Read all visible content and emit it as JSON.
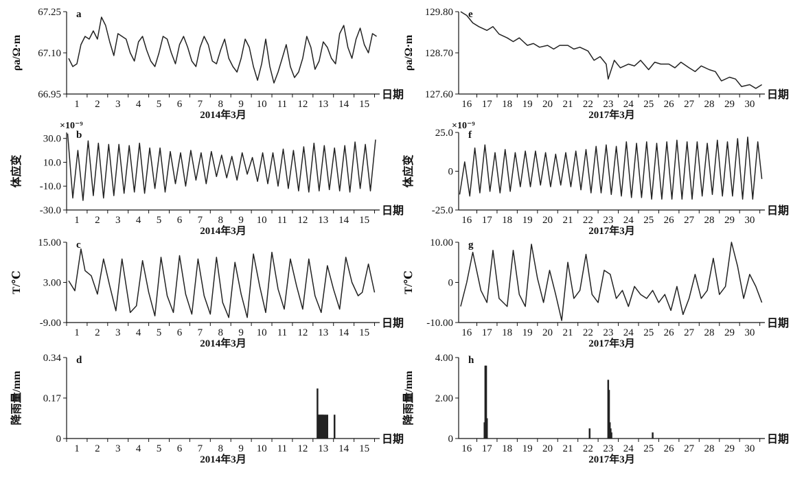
{
  "chart_data": [
    {
      "id": "a",
      "panel_label": "a",
      "type": "line",
      "ylabel": "ρa/Ω·m",
      "xlabel": "日期",
      "date_label": "2014年3月",
      "ylim": [
        66.95,
        67.25
      ],
      "yticks": [
        "67.25",
        "67.10",
        "66.95"
      ],
      "ytick_values": [
        67.25,
        67.1,
        66.95
      ],
      "xlim": [
        0.5,
        15.75
      ],
      "xticks": [
        1,
        2,
        3,
        4,
        5,
        6,
        7,
        8,
        9,
        10,
        11,
        12,
        13,
        14,
        15
      ],
      "x": [
        0.6,
        0.8,
        1.0,
        1.2,
        1.4,
        1.6,
        1.8,
        2.0,
        2.2,
        2.4,
        2.6,
        2.8,
        3.0,
        3.2,
        3.4,
        3.6,
        3.8,
        4.0,
        4.2,
        4.4,
        4.6,
        4.8,
        5.0,
        5.2,
        5.4,
        5.6,
        5.8,
        6.0,
        6.2,
        6.4,
        6.6,
        6.8,
        7.0,
        7.2,
        7.4,
        7.6,
        7.8,
        8.0,
        8.2,
        8.4,
        8.6,
        8.8,
        9.0,
        9.2,
        9.4,
        9.6,
        9.8,
        10.0,
        10.2,
        10.4,
        10.6,
        10.8,
        11.0,
        11.2,
        11.4,
        11.6,
        11.8,
        12.0,
        12.2,
        12.4,
        12.6,
        12.8,
        13.0,
        13.2,
        13.4,
        13.6,
        13.8,
        14.0,
        14.2,
        14.4,
        14.6,
        14.8,
        15.0,
        15.2,
        15.4,
        15.6
      ],
      "y": [
        67.08,
        67.05,
        67.06,
        67.13,
        67.16,
        67.15,
        67.18,
        67.15,
        67.23,
        67.2,
        67.14,
        67.09,
        67.17,
        67.16,
        67.15,
        67.1,
        67.07,
        67.14,
        67.16,
        67.11,
        67.07,
        67.05,
        67.1,
        67.16,
        67.15,
        67.1,
        67.06,
        67.13,
        67.16,
        67.12,
        67.07,
        67.05,
        67.12,
        67.16,
        67.13,
        67.07,
        67.06,
        67.11,
        67.15,
        67.08,
        67.05,
        67.03,
        67.08,
        67.15,
        67.12,
        67.05,
        67.0,
        67.06,
        67.15,
        67.05,
        66.99,
        67.03,
        67.08,
        67.13,
        67.05,
        67.01,
        67.03,
        67.08,
        67.16,
        67.12,
        67.04,
        67.07,
        67.14,
        67.12,
        67.08,
        67.06,
        67.17,
        67.2,
        67.12,
        67.08,
        67.15,
        67.19,
        67.13,
        67.1,
        67.17,
        67.16
      ]
    },
    {
      "id": "b",
      "panel_label": "b",
      "type": "line",
      "ylabel": "体应变",
      "xlabel": "日期",
      "date_label": "2014年3月",
      "unit_text": "×10⁻⁹",
      "ylim": [
        -30,
        35
      ],
      "yticks": [
        "30.0",
        "10.0",
        "-10.0",
        "-30.0"
      ],
      "ytick_values": [
        30,
        10,
        -10,
        -30
      ],
      "xlim": [
        0.5,
        15.75
      ],
      "xticks": [
        1,
        2,
        3,
        4,
        5,
        6,
        7,
        8,
        9,
        10,
        11,
        12,
        13,
        14,
        15
      ],
      "x": [
        0.55,
        0.8,
        1.05,
        1.3,
        1.55,
        1.8,
        2.05,
        2.3,
        2.55,
        2.8,
        3.05,
        3.3,
        3.55,
        3.8,
        4.05,
        4.3,
        4.55,
        4.8,
        5.05,
        5.3,
        5.55,
        5.8,
        6.05,
        6.3,
        6.55,
        6.8,
        7.05,
        7.3,
        7.55,
        7.8,
        8.05,
        8.3,
        8.55,
        8.8,
        9.05,
        9.3,
        9.55,
        9.8,
        10.05,
        10.3,
        10.55,
        10.8,
        11.05,
        11.3,
        11.55,
        11.8,
        12.05,
        12.3,
        12.55,
        12.8,
        13.05,
        13.3,
        13.55,
        13.8,
        14.05,
        14.3,
        14.55,
        14.8,
        15.05,
        15.3,
        15.55
      ],
      "y": [
        34,
        -20,
        20,
        -22,
        28,
        -18,
        26,
        -20,
        25,
        -18,
        25,
        -16,
        24,
        -15,
        26,
        -16,
        22,
        -12,
        22,
        -15,
        19,
        -8,
        18,
        -10,
        20,
        -5,
        18,
        -8,
        19,
        -2,
        16,
        -3,
        15,
        -5,
        18,
        0,
        14,
        -6,
        18,
        -8,
        18,
        -10,
        21,
        -12,
        20,
        -14,
        23,
        -15,
        26,
        -14,
        24,
        -13,
        22,
        -14,
        24,
        -15,
        27,
        -12,
        25,
        -14,
        29
      ]
    },
    {
      "id": "c",
      "panel_label": "c",
      "type": "line",
      "ylabel": "T/℃",
      "xlabel": "日期",
      "date_label": "2014年3月",
      "ylim": [
        -9,
        15
      ],
      "yticks": [
        "15.00",
        "3.00",
        "-9.00"
      ],
      "ytick_values": [
        15,
        3,
        -9
      ],
      "xlim": [
        0.5,
        15.75
      ],
      "xticks": [
        1,
        2,
        3,
        4,
        5,
        6,
        7,
        8,
        9,
        10,
        11,
        12,
        13,
        14,
        15
      ],
      "x": [
        0.6,
        0.9,
        1.2,
        1.4,
        1.7,
        2.0,
        2.3,
        2.6,
        2.9,
        3.2,
        3.6,
        3.9,
        4.2,
        4.5,
        4.8,
        5.1,
        5.4,
        5.7,
        6.0,
        6.3,
        6.6,
        6.9,
        7.2,
        7.5,
        7.8,
        8.1,
        8.4,
        8.7,
        9.0,
        9.3,
        9.6,
        9.9,
        10.2,
        10.5,
        10.8,
        11.1,
        11.4,
        11.7,
        12.0,
        12.3,
        12.6,
        12.9,
        13.2,
        13.5,
        13.8,
        14.1,
        14.4,
        14.7,
        14.9,
        15.2,
        15.5
      ],
      "y": [
        3.5,
        0.5,
        13,
        6.5,
        5,
        -0.5,
        10,
        2,
        -5.5,
        10,
        -6,
        -4,
        9.5,
        0,
        -7,
        10.5,
        -1,
        -6,
        11,
        -0.5,
        -6.5,
        10,
        -1,
        -6.5,
        10.5,
        -3,
        -7.5,
        9,
        -0.5,
        -7.5,
        11.5,
        2,
        -6,
        12,
        1,
        -5,
        10,
        2,
        -5,
        10,
        -1,
        -6,
        8,
        1,
        -5,
        10.5,
        3,
        -1,
        0,
        8.5,
        0
      ]
    },
    {
      "id": "d",
      "panel_label": "d",
      "type": "bar",
      "ylabel": "降雨量/mm",
      "xlabel": "日期",
      "date_label": "2014年3月",
      "ylim": [
        0,
        0.34
      ],
      "yticks": [
        "0.34",
        "0.17",
        "0"
      ],
      "ytick_values": [
        0.34,
        0.17,
        0
      ],
      "xlim": [
        0.5,
        15.75
      ],
      "xticks": [
        1,
        2,
        3,
        4,
        5,
        6,
        7,
        8,
        9,
        10,
        11,
        12,
        13,
        14,
        15
      ],
      "x": [
        12.72,
        12.76,
        12.8,
        12.84,
        12.88,
        12.92,
        12.96,
        13.0,
        13.06,
        13.12,
        13.2,
        13.55
      ],
      "values": [
        0.21,
        0.1,
        0.1,
        0.1,
        0.1,
        0.1,
        0.1,
        0.1,
        0.1,
        0.1,
        0.1,
        0.1
      ]
    },
    {
      "id": "e",
      "panel_label": "e",
      "type": "line",
      "ylabel": "ρa/Ω·m",
      "xlabel": "日期",
      "date_label": "2017年3月",
      "ylim": [
        127.6,
        129.8
      ],
      "yticks": [
        "129.80",
        "128.70",
        "127.60"
      ],
      "ytick_values": [
        129.8,
        128.7,
        127.6
      ],
      "xlim": [
        15.6,
        30.75
      ],
      "xticks": [
        16,
        17,
        18,
        19,
        20,
        21,
        22,
        23,
        24,
        25,
        26,
        27,
        28,
        29,
        30
      ],
      "x": [
        15.7,
        16.0,
        16.3,
        16.6,
        17.0,
        17.3,
        17.6,
        18.0,
        18.3,
        18.6,
        19.0,
        19.3,
        19.6,
        20.0,
        20.3,
        20.6,
        21.0,
        21.3,
        21.6,
        22.0,
        22.3,
        22.6,
        22.9,
        23.0,
        23.3,
        23.6,
        24.0,
        24.3,
        24.6,
        25.0,
        25.3,
        25.6,
        26.0,
        26.3,
        26.6,
        27.0,
        27.3,
        27.6,
        28.0,
        28.3,
        28.6,
        29.0,
        29.3,
        29.6,
        30.0,
        30.3,
        30.6
      ],
      "y": [
        129.8,
        129.7,
        129.5,
        129.4,
        129.3,
        129.4,
        129.2,
        129.1,
        129.0,
        129.1,
        128.9,
        128.95,
        128.85,
        128.9,
        128.8,
        128.9,
        128.9,
        128.8,
        128.85,
        128.75,
        128.5,
        128.6,
        128.4,
        128.0,
        128.5,
        128.3,
        128.4,
        128.35,
        128.5,
        128.25,
        128.45,
        128.4,
        128.4,
        128.3,
        128.45,
        128.3,
        128.2,
        128.35,
        128.25,
        128.2,
        127.95,
        128.05,
        128.0,
        127.8,
        127.85,
        127.75,
        127.85
      ]
    },
    {
      "id": "f",
      "panel_label": "f",
      "type": "line",
      "ylabel": "体应变",
      "xlabel": "日期",
      "date_label": "2017年3月",
      "unit_text": "×10⁻⁹",
      "ylim": [
        -25,
        25
      ],
      "yticks": [
        "25.0",
        "0",
        "-25.0"
      ],
      "ytick_values": [
        25,
        0,
        -25
      ],
      "xlim": [
        15.6,
        30.75
      ],
      "xticks": [
        16,
        17,
        18,
        19,
        20,
        21,
        22,
        23,
        24,
        25,
        26,
        27,
        28,
        29,
        30
      ],
      "x": [
        15.65,
        15.9,
        16.15,
        16.4,
        16.65,
        16.9,
        17.15,
        17.4,
        17.65,
        17.9,
        18.15,
        18.4,
        18.65,
        18.9,
        19.15,
        19.4,
        19.65,
        19.9,
        20.15,
        20.4,
        20.65,
        20.9,
        21.15,
        21.4,
        21.65,
        21.9,
        22.15,
        22.4,
        22.65,
        22.9,
        23.15,
        23.4,
        23.65,
        23.9,
        24.15,
        24.4,
        24.65,
        24.9,
        25.15,
        25.4,
        25.65,
        25.9,
        26.15,
        26.4,
        26.65,
        26.9,
        27.15,
        27.4,
        27.65,
        27.9,
        28.15,
        28.4,
        28.65,
        28.9,
        29.15,
        29.4,
        29.65,
        29.9,
        30.15,
        30.4,
        30.6
      ],
      "y": [
        -15,
        6,
        -16,
        15,
        -14,
        17,
        -13,
        12,
        -14,
        14,
        -13,
        12,
        -10,
        13,
        -10,
        13,
        -9,
        12,
        -10,
        11,
        -9,
        12,
        -10,
        13,
        -12,
        14,
        -14,
        16,
        -14,
        17,
        -15,
        16,
        -16,
        19,
        -17,
        18,
        -17,
        19,
        -18,
        18,
        -18,
        19,
        -18,
        20,
        -18,
        19,
        -18,
        19,
        -16,
        18,
        -15,
        20,
        -16,
        19,
        -16,
        21,
        -18,
        22,
        -18,
        19,
        -5
      ]
    },
    {
      "id": "g",
      "panel_label": "g",
      "type": "line",
      "ylabel": "T/℃",
      "xlabel": "日期",
      "date_label": "2017年3月",
      "ylim": [
        -10,
        10
      ],
      "yticks": [
        "10.00",
        "0",
        "-10.00"
      ],
      "ytick_values": [
        10,
        0,
        -10
      ],
      "xlim": [
        15.6,
        30.75
      ],
      "xticks": [
        16,
        17,
        18,
        19,
        20,
        21,
        22,
        23,
        24,
        25,
        26,
        27,
        28,
        29,
        30
      ],
      "x": [
        15.7,
        16.0,
        16.3,
        16.7,
        17.0,
        17.3,
        17.6,
        18.0,
        18.3,
        18.6,
        18.9,
        19.2,
        19.5,
        19.8,
        20.1,
        20.4,
        20.7,
        21.0,
        21.3,
        21.6,
        21.9,
        22.2,
        22.5,
        22.8,
        23.1,
        23.4,
        23.7,
        24.0,
        24.3,
        24.6,
        24.9,
        25.2,
        25.5,
        25.8,
        26.1,
        26.4,
        26.7,
        27.0,
        27.3,
        27.6,
        27.9,
        28.2,
        28.5,
        28.8,
        29.1,
        29.4,
        29.7,
        30.0,
        30.3,
        30.6
      ],
      "y": [
        -6,
        0,
        7.5,
        -2,
        -5,
        8,
        -4,
        -6,
        8,
        -3,
        -6,
        9.5,
        1,
        -5,
        3,
        -3,
        -9.5,
        5,
        -4,
        -2,
        7,
        -3,
        -5,
        3,
        2,
        -4,
        -2,
        -6,
        -1,
        -3,
        -4,
        -2,
        -5,
        -3,
        -7,
        -1,
        -8,
        -4,
        2,
        -4,
        -2,
        6,
        -3,
        -1,
        10,
        4,
        -4,
        2,
        -1,
        -5
      ]
    },
    {
      "id": "h",
      "panel_label": "h",
      "type": "bar",
      "ylabel": "降雨量/mm",
      "xlabel": "日期",
      "date_label": "2017年3月",
      "ylim": [
        0,
        4.0
      ],
      "yticks": [
        "4.00",
        "2.00",
        "0"
      ],
      "ytick_values": [
        4,
        2,
        0
      ],
      "xlim": [
        15.6,
        30.75
      ],
      "xticks": [
        16,
        17,
        18,
        19,
        20,
        21,
        22,
        23,
        24,
        25,
        26,
        27,
        28,
        29,
        30
      ],
      "x": [
        16.88,
        16.92,
        16.96,
        17.0,
        22.08,
        23.0,
        23.04,
        23.08,
        23.12,
        23.16,
        25.2
      ],
      "values": [
        0.8,
        3.6,
        3.6,
        1.0,
        0.5,
        2.9,
        2.4,
        0.8,
        0.5,
        0.3,
        0.3
      ]
    }
  ]
}
